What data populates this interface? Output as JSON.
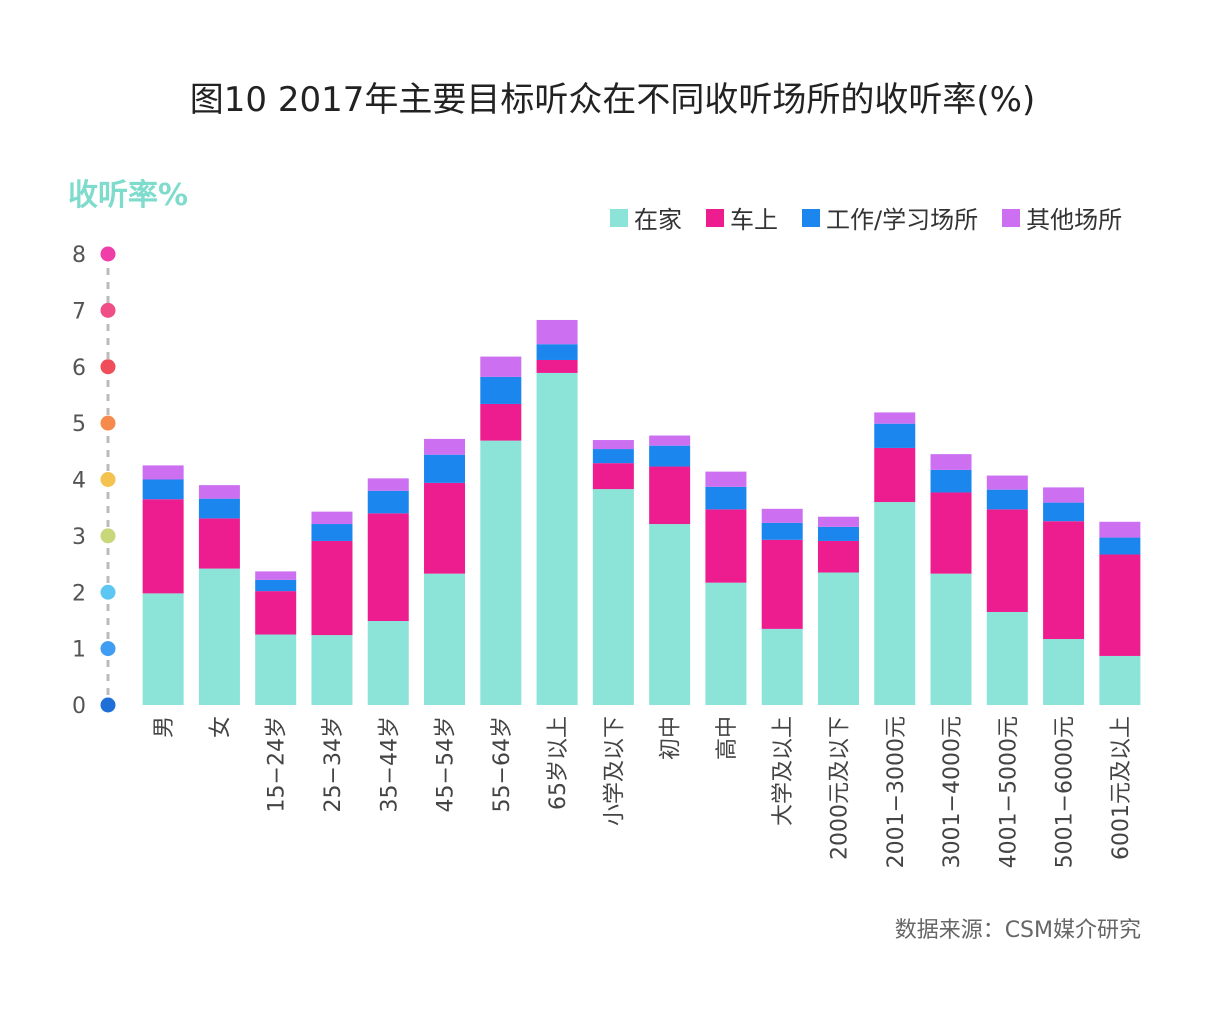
{
  "title": "图10 2017年主要目标听众在不同收听场所的收听率(%)",
  "source": "数据来源：CSM媒介研究",
  "colors": {
    "home": "#8ce3d8",
    "car": "#ee1d8f",
    "work": "#1a86ee",
    "other": "#cc6ff0",
    "ylabel": "#7fdccc",
    "axis_dash": "#bbbbbb",
    "tick_dots": [
      "#1f6fd8",
      "#3f9df2",
      "#5bc7f2",
      "#c8d77a",
      "#f4c24e",
      "#f68a4d",
      "#ef4d59",
      "#ef4f86",
      "#ef3ea8"
    ]
  },
  "chart_data": {
    "type": "bar",
    "stacked": true,
    "title": "图10 2017年主要目标听众在不同收听场所的收听率(%)",
    "ylabel": "收听率%",
    "xlabel": "",
    "ylim": [
      0,
      8
    ],
    "yticks": [
      "0",
      "1",
      "2",
      "3",
      "4",
      "5",
      "6",
      "7",
      "8"
    ],
    "legend_position": "top-right",
    "categories": [
      "男",
      "女",
      "15−24岁",
      "25−34岁",
      "35−44岁",
      "45−54岁",
      "55−64岁",
      "65岁以上",
      "小学及以下",
      "初中",
      "高中",
      "大学及以上",
      "2000元及以下",
      "2001−3000元",
      "3001−4000元",
      "4001−5000元",
      "5001−6000元",
      "6001元及以上"
    ],
    "series": [
      {
        "name": "在家",
        "key": "home",
        "values": [
          1.98,
          2.42,
          1.25,
          1.24,
          1.49,
          2.33,
          4.69,
          5.89,
          3.83,
          3.21,
          2.17,
          1.35,
          2.35,
          3.6,
          2.33,
          1.65,
          1.17,
          0.87
        ]
      },
      {
        "name": "车上",
        "key": "car",
        "values": [
          1.67,
          0.89,
          0.77,
          1.67,
          1.91,
          1.61,
          0.65,
          0.23,
          0.46,
          1.02,
          1.3,
          1.58,
          0.56,
          0.96,
          1.44,
          1.82,
          2.09,
          1.8
        ]
      },
      {
        "name": "工作/学习场所",
        "key": "work",
        "values": [
          0.35,
          0.35,
          0.2,
          0.3,
          0.4,
          0.5,
          0.48,
          0.28,
          0.25,
          0.37,
          0.4,
          0.3,
          0.25,
          0.43,
          0.4,
          0.35,
          0.33,
          0.3
        ]
      },
      {
        "name": "其他场所",
        "key": "other",
        "values": [
          0.25,
          0.24,
          0.15,
          0.22,
          0.22,
          0.28,
          0.36,
          0.43,
          0.16,
          0.18,
          0.27,
          0.25,
          0.18,
          0.2,
          0.28,
          0.25,
          0.27,
          0.28
        ]
      }
    ]
  }
}
